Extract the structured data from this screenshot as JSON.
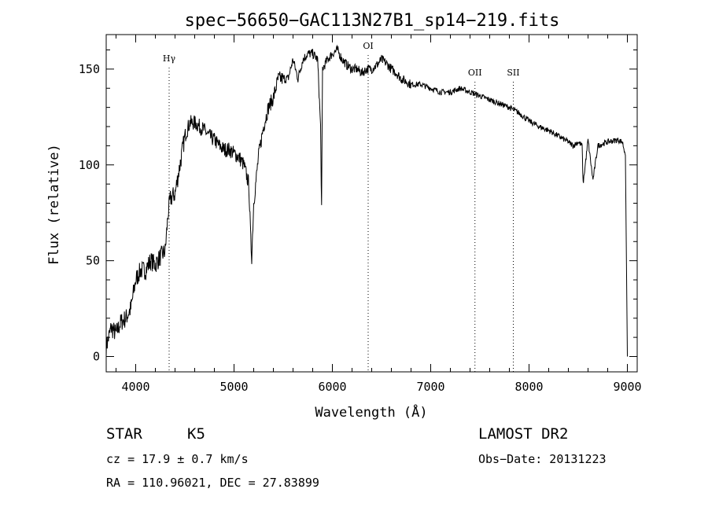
{
  "chart_data": {
    "type": "line",
    "title": "spec−56650−GAC113N27B1_sp14−219.fits",
    "xlabel": "Wavelength (Å)",
    "ylabel": "Flux (relative)",
    "xlim": [
      3700,
      9100
    ],
    "ylim": [
      -8,
      168
    ],
    "xticks": [
      4000,
      5000,
      6000,
      7000,
      8000,
      9000
    ],
    "yticks": [
      0,
      50,
      100,
      150
    ],
    "grid": false,
    "series": [
      {
        "x": [
          3700,
          3750,
          3800,
          3850,
          3900,
          3950,
          4000,
          4050,
          4100,
          4150,
          4200,
          4250,
          4300,
          4330,
          4350,
          4400,
          4450,
          4500,
          4550,
          4600,
          4650,
          4700,
          4750,
          4800,
          4850,
          4900,
          4950,
          5000,
          5050,
          5100,
          5150,
          5170,
          5180,
          5200,
          5250,
          5300,
          5350,
          5400,
          5450,
          5500,
          5550,
          5600,
          5650,
          5700,
          5750,
          5800,
          5850,
          5880,
          5890,
          5900,
          5950,
          6000,
          6050,
          6100,
          6150,
          6200,
          6250,
          6300,
          6350,
          6400,
          6450,
          6500,
          6550,
          6600,
          6650,
          6700,
          6800,
          6900,
          7000,
          7100,
          7200,
          7300,
          7400,
          7500,
          7600,
          7700,
          7800,
          7900,
          8000,
          8100,
          8200,
          8300,
          8400,
          8450,
          8500,
          8540,
          8550,
          8600,
          8650,
          8700,
          8800,
          8900,
          8950,
          8980,
          9000
        ],
        "values": [
          5,
          15,
          12,
          18,
          20,
          25,
          40,
          45,
          45,
          50,
          48,
          52,
          55,
          75,
          82,
          85,
          100,
          115,
          122,
          122,
          120,
          118,
          115,
          113,
          110,
          108,
          108,
          106,
          104,
          100,
          90,
          60,
          52,
          80,
          105,
          120,
          130,
          135,
          145,
          145,
          145,
          155,
          145,
          155,
          158,
          158,
          155,
          120,
          78,
          150,
          155,
          158,
          160,
          155,
          152,
          150,
          150,
          148,
          150,
          150,
          152,
          155,
          153,
          150,
          148,
          145,
          142,
          142,
          140,
          138,
          138,
          140,
          138,
          136,
          134,
          132,
          130,
          127,
          123,
          120,
          118,
          115,
          112,
          110,
          112,
          110,
          90,
          113,
          92,
          110,
          112,
          113,
          112,
          105,
          0
        ],
        "color": "#000000"
      }
    ],
    "annotations": [
      {
        "label": "Hγ",
        "x": 4340
      },
      {
        "label": "OI",
        "x": 6364
      },
      {
        "label": "OII",
        "x": 7450
      },
      {
        "label": "SII",
        "x": 7840
      }
    ]
  },
  "footer": {
    "class_label": "STAR",
    "subclass": "K5",
    "survey": "LAMOST DR2",
    "cz": "cz = 17.9 ± 0.7 km/s",
    "obs_date": "Obs−Date: 20131223",
    "coords": "RA = 110.96021, DEC =  27.83899"
  }
}
